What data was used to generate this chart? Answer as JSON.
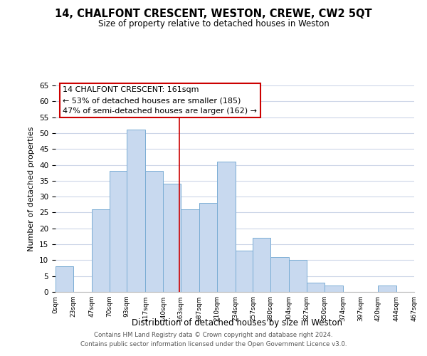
{
  "title": "14, CHALFONT CRESCENT, WESTON, CREWE, CW2 5QT",
  "subtitle": "Size of property relative to detached houses in Weston",
  "xlabel": "Distribution of detached houses by size in Weston",
  "ylabel": "Number of detached properties",
  "bar_edges": [
    0,
    23,
    47,
    70,
    93,
    117,
    140,
    163,
    187,
    210,
    234,
    257,
    280,
    304,
    327,
    350,
    374,
    397,
    420,
    444,
    467
  ],
  "bar_heights": [
    8,
    0,
    26,
    38,
    51,
    38,
    34,
    26,
    28,
    41,
    13,
    17,
    11,
    10,
    3,
    2,
    0,
    0,
    2,
    0
  ],
  "bar_color": "#c8d9ef",
  "bar_edgecolor": "#7aadd4",
  "vline_x": 161,
  "vline_color": "#cc0000",
  "ylim": [
    0,
    65
  ],
  "yticks": [
    0,
    5,
    10,
    15,
    20,
    25,
    30,
    35,
    40,
    45,
    50,
    55,
    60,
    65
  ],
  "tick_labels": [
    "0sqm",
    "23sqm",
    "47sqm",
    "70sqm",
    "93sqm",
    "117sqm",
    "140sqm",
    "163sqm",
    "187sqm",
    "210sqm",
    "234sqm",
    "257sqm",
    "280sqm",
    "304sqm",
    "327sqm",
    "350sqm",
    "374sqm",
    "397sqm",
    "420sqm",
    "444sqm",
    "467sqm"
  ],
  "annotation_title": "14 CHALFONT CRESCENT: 161sqm",
  "annotation_line1": "← 53% of detached houses are smaller (185)",
  "annotation_line2": "47% of semi-detached houses are larger (162) →",
  "footer1": "Contains HM Land Registry data © Crown copyright and database right 2024.",
  "footer2": "Contains public sector information licensed under the Open Government Licence v3.0.",
  "background_color": "#ffffff",
  "grid_color": "#cdd6e8"
}
